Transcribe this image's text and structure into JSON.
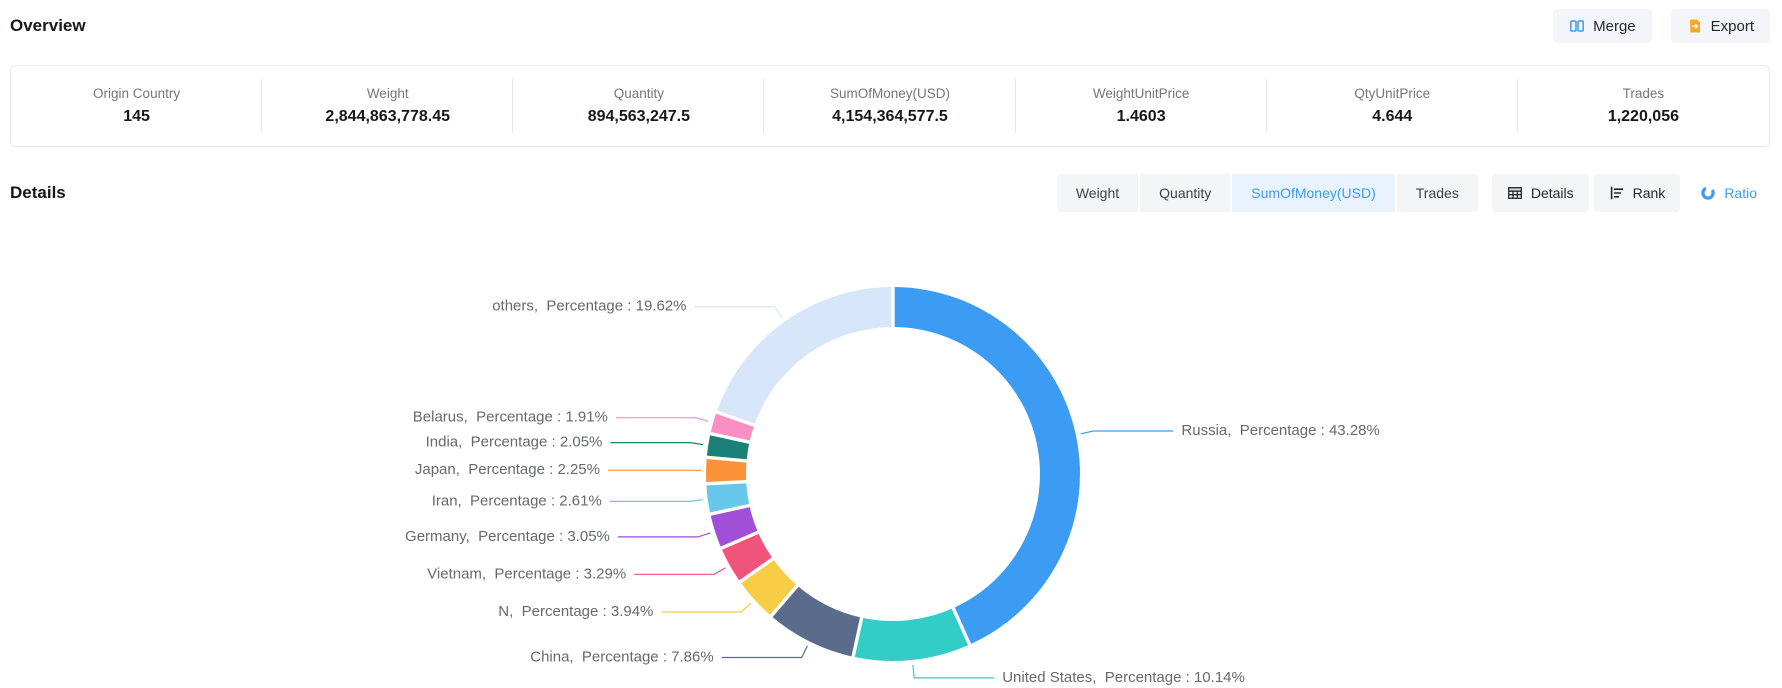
{
  "overview": {
    "title": "Overview"
  },
  "toolbar": {
    "merge_label": "Merge",
    "export_label": "Export"
  },
  "stats": [
    {
      "label": "Origin Country",
      "value": "145"
    },
    {
      "label": "Weight",
      "value": "2,844,863,778.45"
    },
    {
      "label": "Quantity",
      "value": "894,563,247.5"
    },
    {
      "label": "SumOfMoney(USD)",
      "value": "4,154,364,577.5"
    },
    {
      "label": "WeightUnitPrice",
      "value": "1.4603"
    },
    {
      "label": "QtyUnitPrice",
      "value": "4.644"
    },
    {
      "label": "Trades",
      "value": "1,220,056"
    }
  ],
  "details": {
    "title": "Details"
  },
  "controls": {
    "metric_tabs": [
      {
        "label": "Weight",
        "active": false
      },
      {
        "label": "Quantity",
        "active": false
      },
      {
        "label": "SumOfMoney(USD)",
        "active": true
      },
      {
        "label": "Trades",
        "active": false
      }
    ],
    "view_tabs": [
      {
        "label": "Details",
        "icon": "table-icon",
        "active": false
      },
      {
        "label": "Rank",
        "icon": "rank-icon",
        "active": false
      },
      {
        "label": "Ratio",
        "icon": "ratio-icon",
        "active": true
      }
    ]
  },
  "colors": {
    "accent": "#3c9cf4",
    "tab_active_bg": "#e8f3fe",
    "control_bg": "#f3f5f7",
    "export_icon_orange": "#f9a825",
    "chart_label_text": "#66696e"
  },
  "chart_data": {
    "type": "pie",
    "donut": true,
    "start_angle_deg": 0,
    "clockwise": true,
    "legend_position": "none",
    "label_format": "{name}, Percentage : {value}%",
    "series": [
      {
        "name": "Russia",
        "value": 43.28,
        "color": "#3c9cf4"
      },
      {
        "name": "United States",
        "value": 10.14,
        "color": "#32cec6"
      },
      {
        "name": "China",
        "value": 7.86,
        "color": "#5a6b8c"
      },
      {
        "name": "N",
        "value": 3.94,
        "color": "#f7cd45"
      },
      {
        "name": "Vietnam",
        "value": 3.29,
        "color": "#f0537b"
      },
      {
        "name": "Germany",
        "value": 3.05,
        "color": "#a04fd6"
      },
      {
        "name": "Iran",
        "value": 2.61,
        "color": "#66c7ea"
      },
      {
        "name": "Japan",
        "value": 2.25,
        "color": "#fa9237"
      },
      {
        "name": "India",
        "value": 2.05,
        "color": "#1b8078"
      },
      {
        "name": "Belarus",
        "value": 1.91,
        "color": "#fb8fc3"
      },
      {
        "name": "others",
        "value": 19.62,
        "color": "#d7e6f9"
      }
    ]
  }
}
